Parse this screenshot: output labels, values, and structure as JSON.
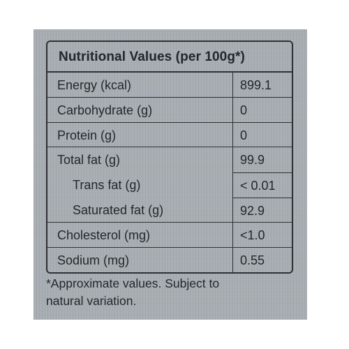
{
  "table": {
    "title": "Nutritional Values (per 100g*)",
    "rows": [
      {
        "name": "Energy (kcal)",
        "value": "899.1"
      },
      {
        "name": "Carbohydrate (g)",
        "value": "0"
      },
      {
        "name": "Protein (g)",
        "value": "0"
      },
      {
        "name": "Total fat (g)",
        "value": "99.9"
      },
      {
        "name": "Trans fat (g)",
        "value": "< 0.01"
      },
      {
        "name": "Saturated fat (g)",
        "value": "92.9"
      },
      {
        "name": "Cholesterol (mg)",
        "value": "<1.0"
      },
      {
        "name": "Sodium (mg)",
        "value": "0.55"
      }
    ]
  },
  "footnote": {
    "line1": "*Approximate values. Subject to",
    "line2": "natural variation."
  },
  "colors": {
    "background": "#a7adb2",
    "text": "#23272b",
    "border": "#2e3236"
  }
}
